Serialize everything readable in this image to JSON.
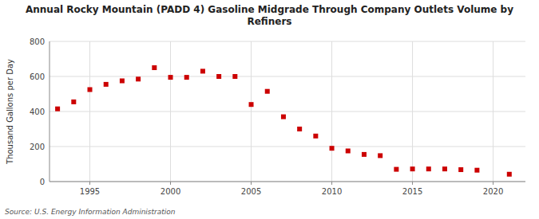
{
  "chart_data": {
    "type": "scatter",
    "title": "Annual Rocky Mountain (PADD 4) Gasoline Midgrade Through Company Outlets Volume by\nRefiners",
    "ylabel": "Thousand Gallons per Day",
    "annotations": [
      "Source: U.S. Energy Information Administration"
    ],
    "x": [
      1993,
      1994,
      1995,
      1996,
      1997,
      1998,
      1999,
      2000,
      2001,
      2002,
      2003,
      2004,
      2005,
      2006,
      2007,
      2008,
      2009,
      2010,
      2011,
      2012,
      2013,
      2014,
      2015,
      2016,
      2017,
      2018,
      2019,
      2021
    ],
    "values": [
      415,
      455,
      525,
      555,
      575,
      585,
      650,
      595,
      595,
      630,
      600,
      600,
      440,
      515,
      370,
      300,
      260,
      190,
      175,
      155,
      148,
      70,
      72,
      72,
      72,
      68,
      65,
      42
    ],
    "color": "#cc0000",
    "marker": "square",
    "xlim": [
      1992.5,
      2022
    ],
    "ylim": [
      0,
      800
    ],
    "xticks": [
      1995,
      2000,
      2005,
      2010,
      2015,
      2020
    ],
    "yticks": [
      0,
      200,
      400,
      600,
      800
    ],
    "grid": true
  }
}
